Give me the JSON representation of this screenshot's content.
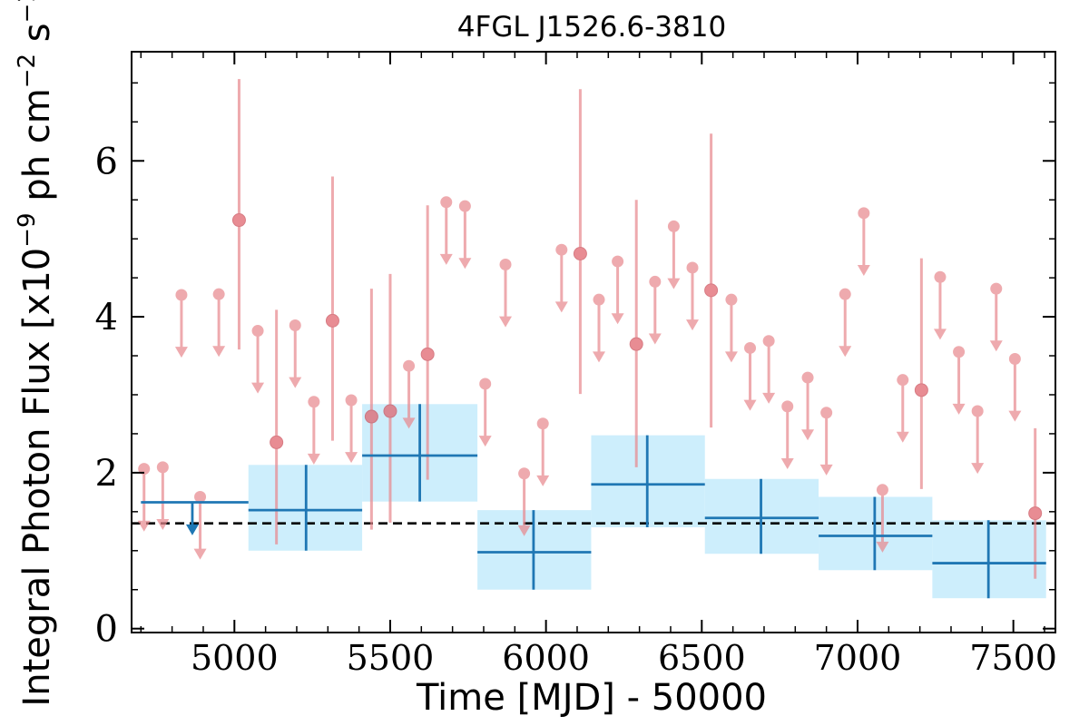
{
  "chart_data": {
    "type": "scatter",
    "title": "4FGL J1526.6-3810",
    "xlabel": "Time [MJD] - 50000",
    "ylabel": "Integral Photon Flux [x10",
    "ylabel_exp": "−9",
    "ylabel_mid": " ph cm",
    "ylabel_exp2": "−2",
    "ylabel_end": " s",
    "ylabel_exp3": "−1",
    "ylabel_close": "]",
    "xlim": [
      4670,
      7635
    ],
    "ylim": [
      -0.05,
      7.4
    ],
    "xticks": [
      5000,
      5500,
      6000,
      6500,
      7000,
      7500
    ],
    "yticks": [
      0,
      2,
      4,
      6
    ],
    "colors": {
      "short_bin": "#e88a8f",
      "long_bin": "#1f77b4",
      "long_band": "#cdeefc",
      "reference": "#000000"
    },
    "reference_flux": 1.35,
    "short_bins_upper_limits": [
      {
        "x": 4710,
        "y": 2.05
      },
      {
        "x": 4770,
        "y": 2.07
      },
      {
        "x": 4830,
        "y": 4.28
      },
      {
        "x": 4890,
        "y": 1.69
      },
      {
        "x": 4950,
        "y": 4.29
      },
      {
        "x": 5075,
        "y": 3.82
      },
      {
        "x": 5195,
        "y": 3.89
      },
      {
        "x": 5255,
        "y": 2.91
      },
      {
        "x": 5375,
        "y": 2.93
      },
      {
        "x": 5560,
        "y": 3.37
      },
      {
        "x": 5680,
        "y": 5.47
      },
      {
        "x": 5740,
        "y": 5.42
      },
      {
        "x": 5805,
        "y": 3.14
      },
      {
        "x": 5870,
        "y": 4.67
      },
      {
        "x": 5930,
        "y": 1.99
      },
      {
        "x": 5990,
        "y": 2.63
      },
      {
        "x": 6050,
        "y": 4.86
      },
      {
        "x": 6170,
        "y": 4.22
      },
      {
        "x": 6230,
        "y": 4.71
      },
      {
        "x": 6350,
        "y": 4.45
      },
      {
        "x": 6410,
        "y": 5.16
      },
      {
        "x": 6470,
        "y": 4.63
      },
      {
        "x": 6595,
        "y": 4.22
      },
      {
        "x": 6655,
        "y": 3.6
      },
      {
        "x": 6715,
        "y": 3.69
      },
      {
        "x": 6775,
        "y": 2.85
      },
      {
        "x": 6840,
        "y": 3.22
      },
      {
        "x": 6900,
        "y": 2.77
      },
      {
        "x": 6960,
        "y": 4.29
      },
      {
        "x": 7020,
        "y": 5.33
      },
      {
        "x": 7080,
        "y": 1.78
      },
      {
        "x": 7145,
        "y": 3.19
      },
      {
        "x": 7265,
        "y": 4.51
      },
      {
        "x": 7325,
        "y": 3.55
      },
      {
        "x": 7385,
        "y": 2.79
      },
      {
        "x": 7445,
        "y": 4.36
      },
      {
        "x": 7505,
        "y": 3.46
      }
    ],
    "short_bins_detections": [
      {
        "x": 5015,
        "y": 5.24,
        "ylo": 3.58,
        "yhi": 7.05
      },
      {
        "x": 5135,
        "y": 2.39,
        "ylo": 1.08,
        "yhi": 4.09
      },
      {
        "x": 5315,
        "y": 3.95,
        "ylo": 2.41,
        "yhi": 5.8
      },
      {
        "x": 5440,
        "y": 2.72,
        "ylo": 1.27,
        "yhi": 4.36
      },
      {
        "x": 5500,
        "y": 2.79,
        "ylo": 1.36,
        "yhi": 4.55
      },
      {
        "x": 5620,
        "y": 3.52,
        "ylo": 1.91,
        "yhi": 5.43
      },
      {
        "x": 6110,
        "y": 4.81,
        "ylo": 3.01,
        "yhi": 6.92
      },
      {
        "x": 6290,
        "y": 3.65,
        "ylo": 2.07,
        "yhi": 5.5
      },
      {
        "x": 6530,
        "y": 4.34,
        "ylo": 2.58,
        "yhi": 6.35
      },
      {
        "x": 7205,
        "y": 3.06,
        "ylo": 1.79,
        "yhi": 4.75
      },
      {
        "x": 7570,
        "y": 1.48,
        "ylo": 0.64,
        "yhi": 2.57
      }
    ],
    "long_bins_upper_limits": [
      {
        "x": 4865,
        "y": 1.62,
        "xlo": 4700,
        "xhi": 5045
      }
    ],
    "long_bins_detections": [
      {
        "x": 5230,
        "y": 1.52,
        "xlo": 5045,
        "xhi": 5410,
        "ylo": 1.0,
        "yhi": 2.1
      },
      {
        "x": 5595,
        "y": 2.22,
        "xlo": 5410,
        "xhi": 5780,
        "ylo": 1.63,
        "yhi": 2.88
      },
      {
        "x": 5960,
        "y": 0.98,
        "xlo": 5780,
        "xhi": 6145,
        "ylo": 0.5,
        "yhi": 1.52
      },
      {
        "x": 6325,
        "y": 1.85,
        "xlo": 6145,
        "xhi": 6510,
        "ylo": 1.3,
        "yhi": 2.48
      },
      {
        "x": 6690,
        "y": 1.42,
        "xlo": 6510,
        "xhi": 6875,
        "ylo": 0.96,
        "yhi": 1.92
      },
      {
        "x": 7055,
        "y": 1.19,
        "xlo": 6875,
        "xhi": 7240,
        "ylo": 0.75,
        "yhi": 1.69
      },
      {
        "x": 7420,
        "y": 0.84,
        "xlo": 7240,
        "xhi": 7605,
        "ylo": 0.39,
        "yhi": 1.39
      }
    ]
  }
}
